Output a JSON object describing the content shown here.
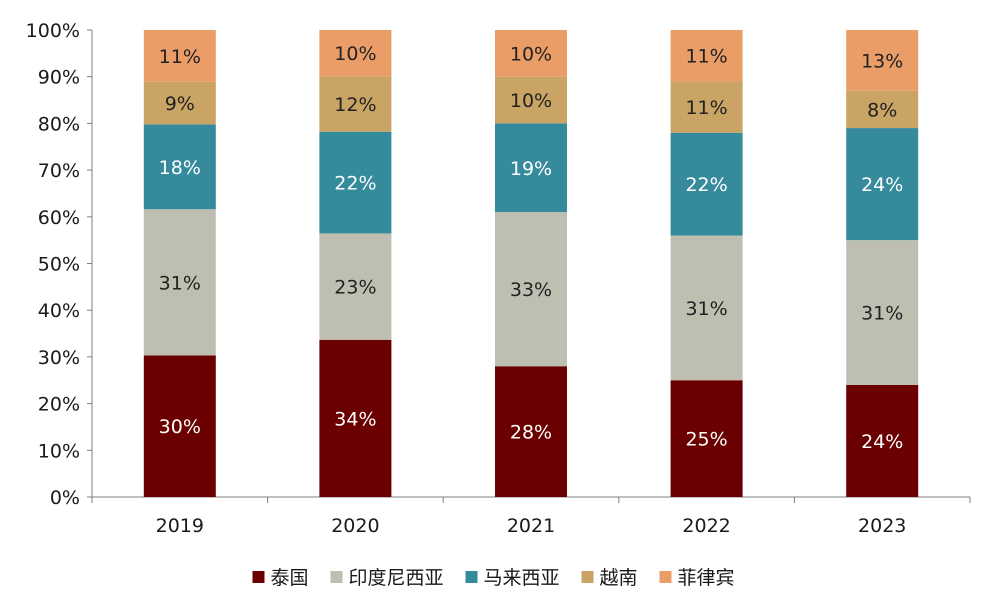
{
  "chart_data": {
    "type": "bar",
    "stacked": true,
    "percent_stacked": true,
    "categories": [
      "2019",
      "2020",
      "2021",
      "2022",
      "2023"
    ],
    "series": [
      {
        "name": "泰国",
        "color": "#6b0000",
        "values": [
          30,
          34,
          28,
          25,
          24
        ],
        "labels": [
          "30%",
          "34%",
          "28%",
          "25%",
          "24%"
        ],
        "label_color": "#ffffff"
      },
      {
        "name": "印度尼西亚",
        "color": "#bfbfb1",
        "values": [
          31,
          23,
          33,
          31,
          31
        ],
        "labels": [
          "31%",
          "23%",
          "33%",
          "31%",
          "31%"
        ],
        "label_color": "#222222"
      },
      {
        "name": "马来西亚",
        "color": "#358a9c",
        "values": [
          18,
          22,
          19,
          22,
          24
        ],
        "labels": [
          "18%",
          "22%",
          "19%",
          "22%",
          "24%"
        ],
        "label_color": "#ffffff"
      },
      {
        "name": "越南",
        "color": "#c9a465",
        "values": [
          9,
          12,
          10,
          11,
          8
        ],
        "labels": [
          "9%",
          "12%",
          "10%",
          "11%",
          "8%"
        ],
        "label_color": "#222222"
      },
      {
        "name": "菲律宾",
        "color": "#eb9d67",
        "values": [
          11,
          10,
          10,
          11,
          13
        ],
        "labels": [
          "11%",
          "10%",
          "10%",
          "11%",
          "13%"
        ],
        "label_color": "#222222"
      }
    ],
    "yticks": [
      "0%",
      "10%",
      "20%",
      "30%",
      "40%",
      "50%",
      "60%",
      "70%",
      "80%",
      "90%",
      "100%"
    ],
    "ylim": [
      0,
      100
    ],
    "grid": false,
    "legend_position": "bottom",
    "title": "",
    "xlabel": "",
    "ylabel": ""
  }
}
